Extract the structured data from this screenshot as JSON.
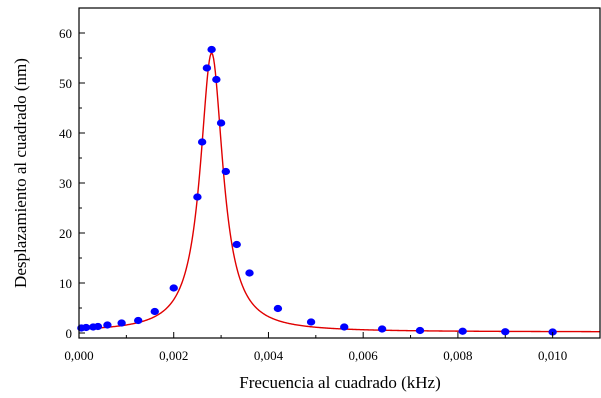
{
  "chart_data": {
    "type": "scatter",
    "title": "",
    "xlabel": "Frecuencia al cuadrado (kHz)",
    "ylabel": "Desplazamiento al cuadrado (nm)",
    "xlim": [
      0.0,
      0.011
    ],
    "ylim": [
      -1,
      65
    ],
    "x_ticks": [
      0.0,
      0.002,
      0.004,
      0.006,
      0.008,
      0.01
    ],
    "x_tick_labels": [
      "0,000",
      "0,002",
      "0,004",
      "0,006",
      "0,008",
      "0,010"
    ],
    "y_ticks": [
      0,
      10,
      20,
      30,
      40,
      50,
      60
    ],
    "y_tick_labels": [
      "0",
      "10",
      "20",
      "30",
      "40",
      "50",
      "60"
    ],
    "grid": false,
    "legend": "none",
    "series": [
      {
        "kind": "points",
        "color": "#0000ff",
        "x": [
          5e-05,
          0.00015,
          0.0003,
          0.0004,
          0.0006,
          0.0009,
          0.00125,
          0.0016,
          0.002,
          0.0025,
          0.0026,
          0.0027,
          0.0028,
          0.0029,
          0.003,
          0.0031,
          0.00333,
          0.0036,
          0.0042,
          0.0049,
          0.0056,
          0.0064,
          0.0072,
          0.0081,
          0.009,
          0.01
        ],
        "y": [
          1.0,
          1.1,
          1.2,
          1.3,
          1.6,
          2.0,
          2.5,
          4.3,
          9.0,
          27.2,
          38.2,
          53.0,
          56.7,
          50.7,
          42.0,
          32.3,
          17.7,
          12.0,
          4.9,
          2.2,
          1.2,
          0.8,
          0.5,
          0.35,
          0.25,
          0.2
        ]
      },
      {
        "kind": "fit",
        "color": "#e00000",
        "peak_x": 0.0028,
        "peak_y": 56.0,
        "half_width": 0.00029,
        "baseline": 0.2
      }
    ]
  }
}
